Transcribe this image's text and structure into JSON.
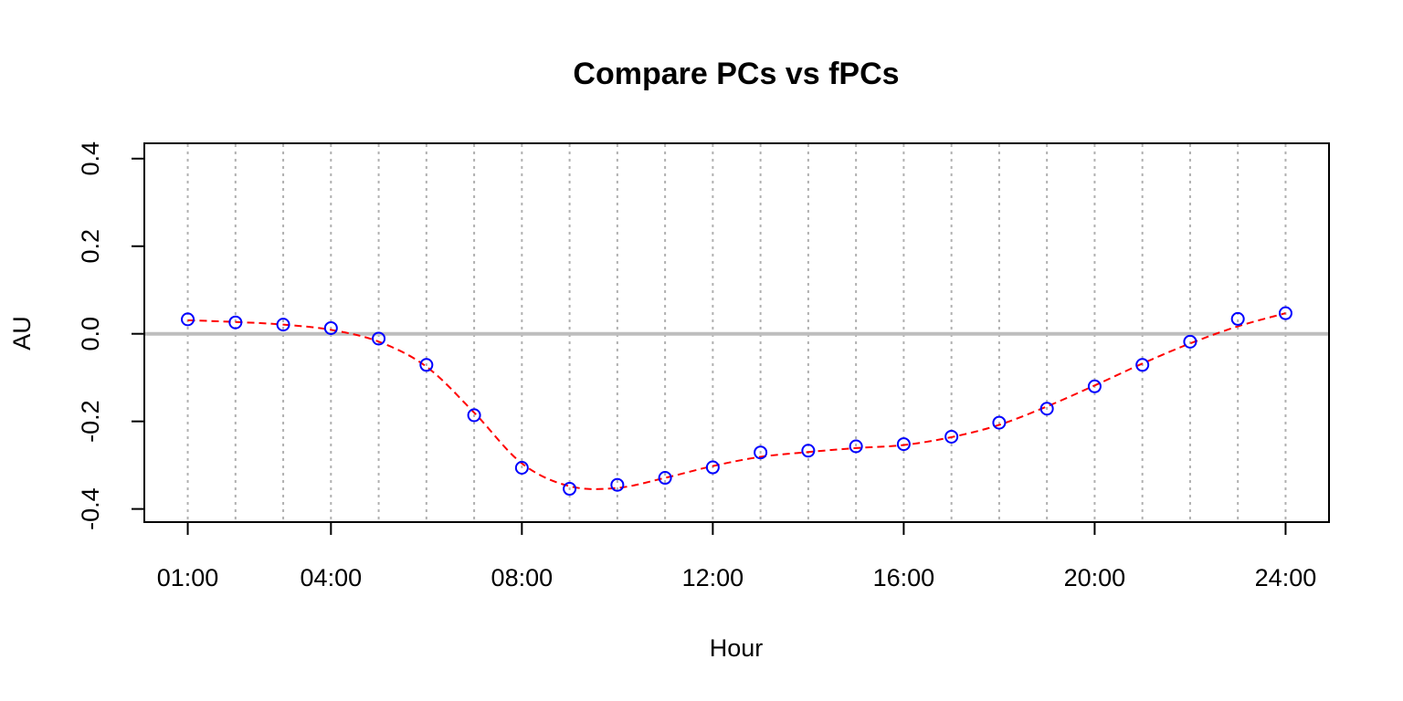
{
  "chart_data": {
    "type": "line",
    "title": "Compare PCs vs fPCs",
    "xlabel": "Hour",
    "ylabel": "AU",
    "xlim": [
      0.09,
      24.91
    ],
    "ylim": [
      -0.43,
      0.435
    ],
    "x_ticks": [
      {
        "x": 1,
        "label": "01:00"
      },
      {
        "x": 4,
        "label": "04:00"
      },
      {
        "x": 8,
        "label": "08:00"
      },
      {
        "x": 12,
        "label": "12:00"
      },
      {
        "x": 16,
        "label": "16:00"
      },
      {
        "x": 20,
        "label": "20:00"
      },
      {
        "x": 24,
        "label": "24:00"
      }
    ],
    "y_ticks": [
      {
        "y": -0.4,
        "label": "-0.4"
      },
      {
        "y": -0.2,
        "label": "-0.2"
      },
      {
        "y": 0.0,
        "label": "0.0"
      },
      {
        "y": 0.2,
        "label": "0.2"
      },
      {
        "y": 0.4,
        "label": "0.4"
      }
    ],
    "vertical_gridlines_x": [
      1,
      2,
      3,
      4,
      5,
      6,
      7,
      8,
      9,
      10,
      11,
      12,
      13,
      14,
      15,
      16,
      17,
      18,
      19,
      20,
      21,
      22,
      23,
      24
    ],
    "reference_line_y": 0.0,
    "series": [
      {
        "style": "points",
        "marker": "open-circle",
        "color": "#0000ff",
        "x": [
          1,
          2,
          3,
          4,
          5,
          6,
          7,
          8,
          9,
          10,
          11,
          12,
          13,
          14,
          15,
          16,
          17,
          18,
          19,
          20,
          21,
          22,
          23,
          24
        ],
        "values": [
          0.033,
          0.026,
          0.021,
          0.013,
          -0.011,
          -0.071,
          -0.186,
          -0.306,
          -0.354,
          -0.345,
          -0.329,
          -0.305,
          -0.271,
          -0.267,
          -0.257,
          -0.252,
          -0.235,
          -0.203,
          -0.171,
          -0.12,
          -0.071,
          -0.018,
          0.034,
          0.047
        ]
      },
      {
        "style": "dashed-line",
        "color": "#ff0000",
        "x": [
          1,
          2,
          3,
          4,
          5,
          6,
          7,
          8,
          9,
          10,
          11,
          12,
          13,
          14,
          15,
          16,
          17,
          18,
          19,
          20,
          21,
          22,
          23,
          24
        ],
        "values": [
          0.031,
          0.027,
          0.021,
          0.009,
          -0.018,
          -0.075,
          -0.18,
          -0.296,
          -0.348,
          -0.352,
          -0.329,
          -0.302,
          -0.281,
          -0.27,
          -0.261,
          -0.254,
          -0.236,
          -0.208,
          -0.166,
          -0.118,
          -0.068,
          -0.022,
          0.017,
          0.047
        ]
      }
    ],
    "grid": "vertical dotted",
    "legend": "none",
    "colors": {
      "points": "#0000ff",
      "line": "#ff0000",
      "reference": "#bebebe",
      "grid": "#b0b0b0"
    }
  }
}
